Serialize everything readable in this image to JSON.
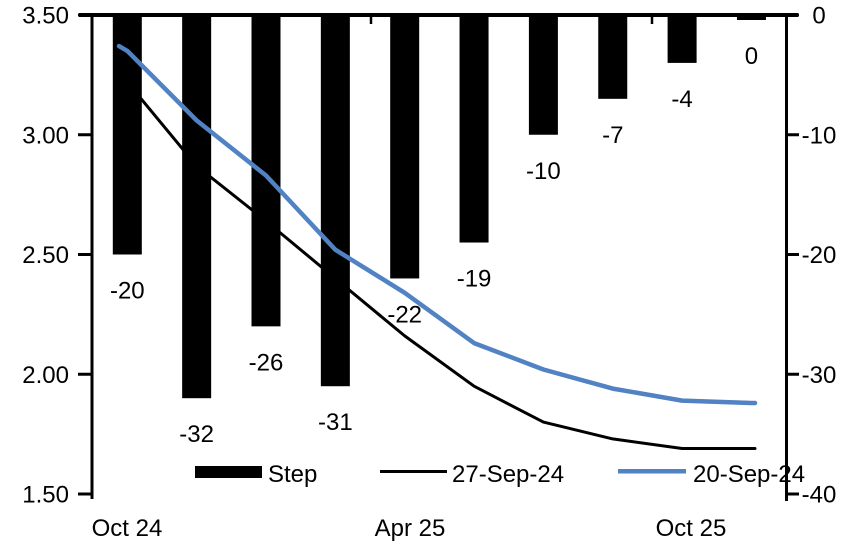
{
  "chart_data": {
    "type": "combo-bar-line",
    "title": "",
    "x_axis": {
      "labels": [
        "Oct 24",
        "Apr 25",
        "Oct 25"
      ]
    },
    "left_axis": {
      "min": 1.5,
      "max": 3.5,
      "tick_step": 0.5,
      "ticks": [
        "3.50",
        "3.00",
        "2.50",
        "2.00",
        "1.50"
      ]
    },
    "right_axis": {
      "min": -40,
      "max": 0,
      "tick_step": 10,
      "ticks": [
        "0",
        "-10",
        "-20",
        "-30",
        "-40"
      ]
    },
    "bars": {
      "name": "Step",
      "axis": "right",
      "color": "#000000",
      "values": [
        -20,
        -32,
        -26,
        -31,
        -22,
        -19,
        -10,
        -7,
        -4,
        0
      ],
      "labels": [
        "-20",
        "-32",
        "-26",
        "-31",
        "-22",
        "-19",
        "-10",
        "-7",
        "-4",
        "0"
      ]
    },
    "series": [
      {
        "name": "27-Sep-24",
        "axis": "left",
        "color": "#000000",
        "width": 3,
        "start_value": 3.25,
        "values": [
          3.22,
          2.87,
          2.64,
          2.4,
          2.16,
          1.95,
          1.8,
          1.73,
          1.69,
          1.69
        ]
      },
      {
        "name": "20-Sep-24",
        "axis": "left",
        "color": "#5182c3",
        "width": 4.5,
        "start_value": 3.37,
        "values": [
          3.35,
          3.06,
          2.83,
          2.52,
          2.34,
          2.13,
          2.02,
          1.94,
          1.89,
          1.88
        ]
      }
    ],
    "legend": {
      "position": "bottom",
      "entries": [
        "Step",
        "27-Sep-24",
        "20-Sep-24"
      ]
    }
  }
}
